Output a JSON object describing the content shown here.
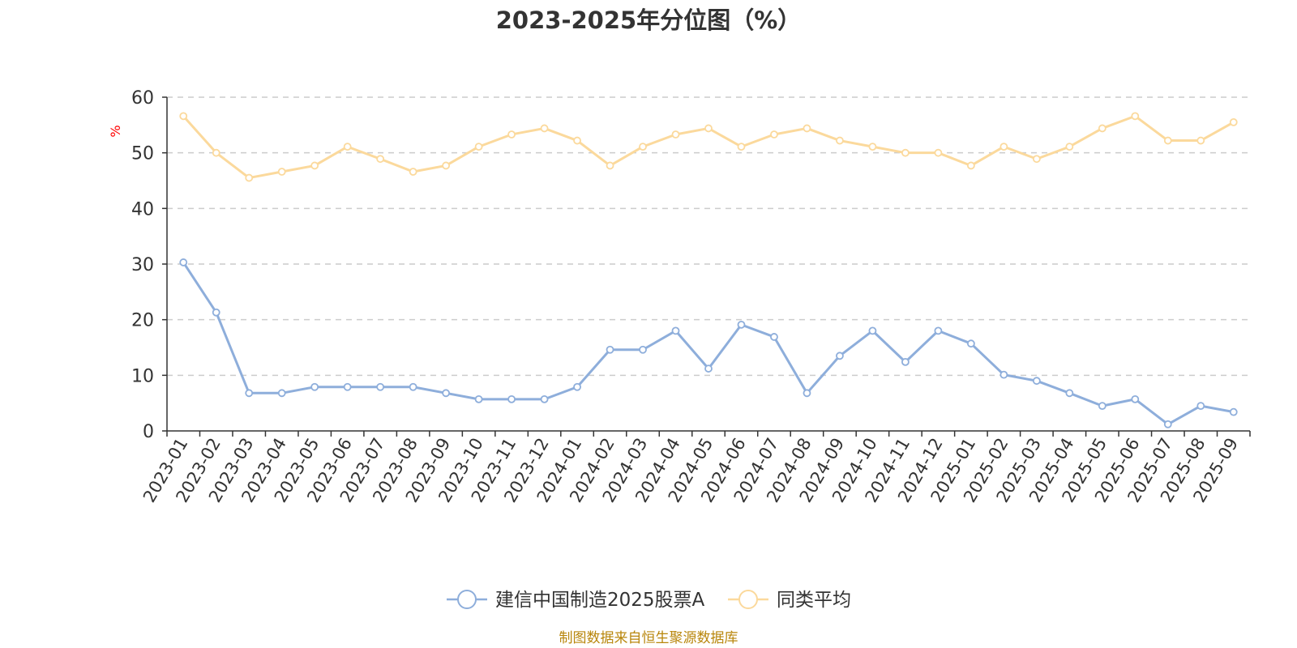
{
  "chart_data": {
    "type": "line",
    "title": "2023-2025年分位图（%）",
    "ylabel": "%",
    "xlabel": "",
    "ylim": [
      0,
      60
    ],
    "yticks": [
      0,
      10,
      20,
      30,
      40,
      50,
      60
    ],
    "grid": true,
    "legend_position": "bottom",
    "categories": [
      "2023-01",
      "2023-02",
      "2023-03",
      "2023-04",
      "2023-05",
      "2023-06",
      "2023-07",
      "2023-08",
      "2023-09",
      "2023-10",
      "2023-11",
      "2023-12",
      "2024-01",
      "2024-02",
      "2024-03",
      "2024-04",
      "2024-05",
      "2024-06",
      "2024-07",
      "2024-08",
      "2024-09",
      "2024-10",
      "2024-11",
      "2024-12",
      "2025-01",
      "2025-02",
      "2025-03",
      "2025-04",
      "2025-05",
      "2025-06",
      "2025-07",
      "2025-08",
      "2025-09"
    ],
    "series": [
      {
        "name": "建信中国制造2025股票A",
        "color": "#8eaedb",
        "values": [
          30.3,
          21.3,
          6.8,
          6.8,
          7.9,
          7.9,
          7.9,
          7.9,
          6.8,
          5.7,
          5.7,
          5.7,
          7.9,
          14.6,
          14.6,
          18.0,
          11.2,
          19.1,
          16.9,
          6.8,
          13.5,
          18.0,
          12.4,
          18.0,
          15.7,
          10.1,
          9.0,
          6.8,
          4.5,
          5.7,
          1.2,
          4.5,
          3.4
        ]
      },
      {
        "name": "同类平均",
        "color": "#fbd99c",
        "values": [
          56.6,
          50.0,
          45.5,
          46.6,
          47.7,
          51.1,
          48.9,
          46.6,
          47.7,
          51.1,
          53.3,
          54.4,
          52.2,
          47.7,
          51.1,
          53.3,
          54.4,
          51.1,
          53.3,
          54.4,
          52.2,
          51.1,
          50.0,
          50.0,
          47.7,
          51.1,
          48.9,
          51.1,
          54.4,
          56.6,
          52.2,
          52.2,
          55.5
        ]
      }
    ],
    "source": "制图数据来自恒生聚源数据库"
  }
}
